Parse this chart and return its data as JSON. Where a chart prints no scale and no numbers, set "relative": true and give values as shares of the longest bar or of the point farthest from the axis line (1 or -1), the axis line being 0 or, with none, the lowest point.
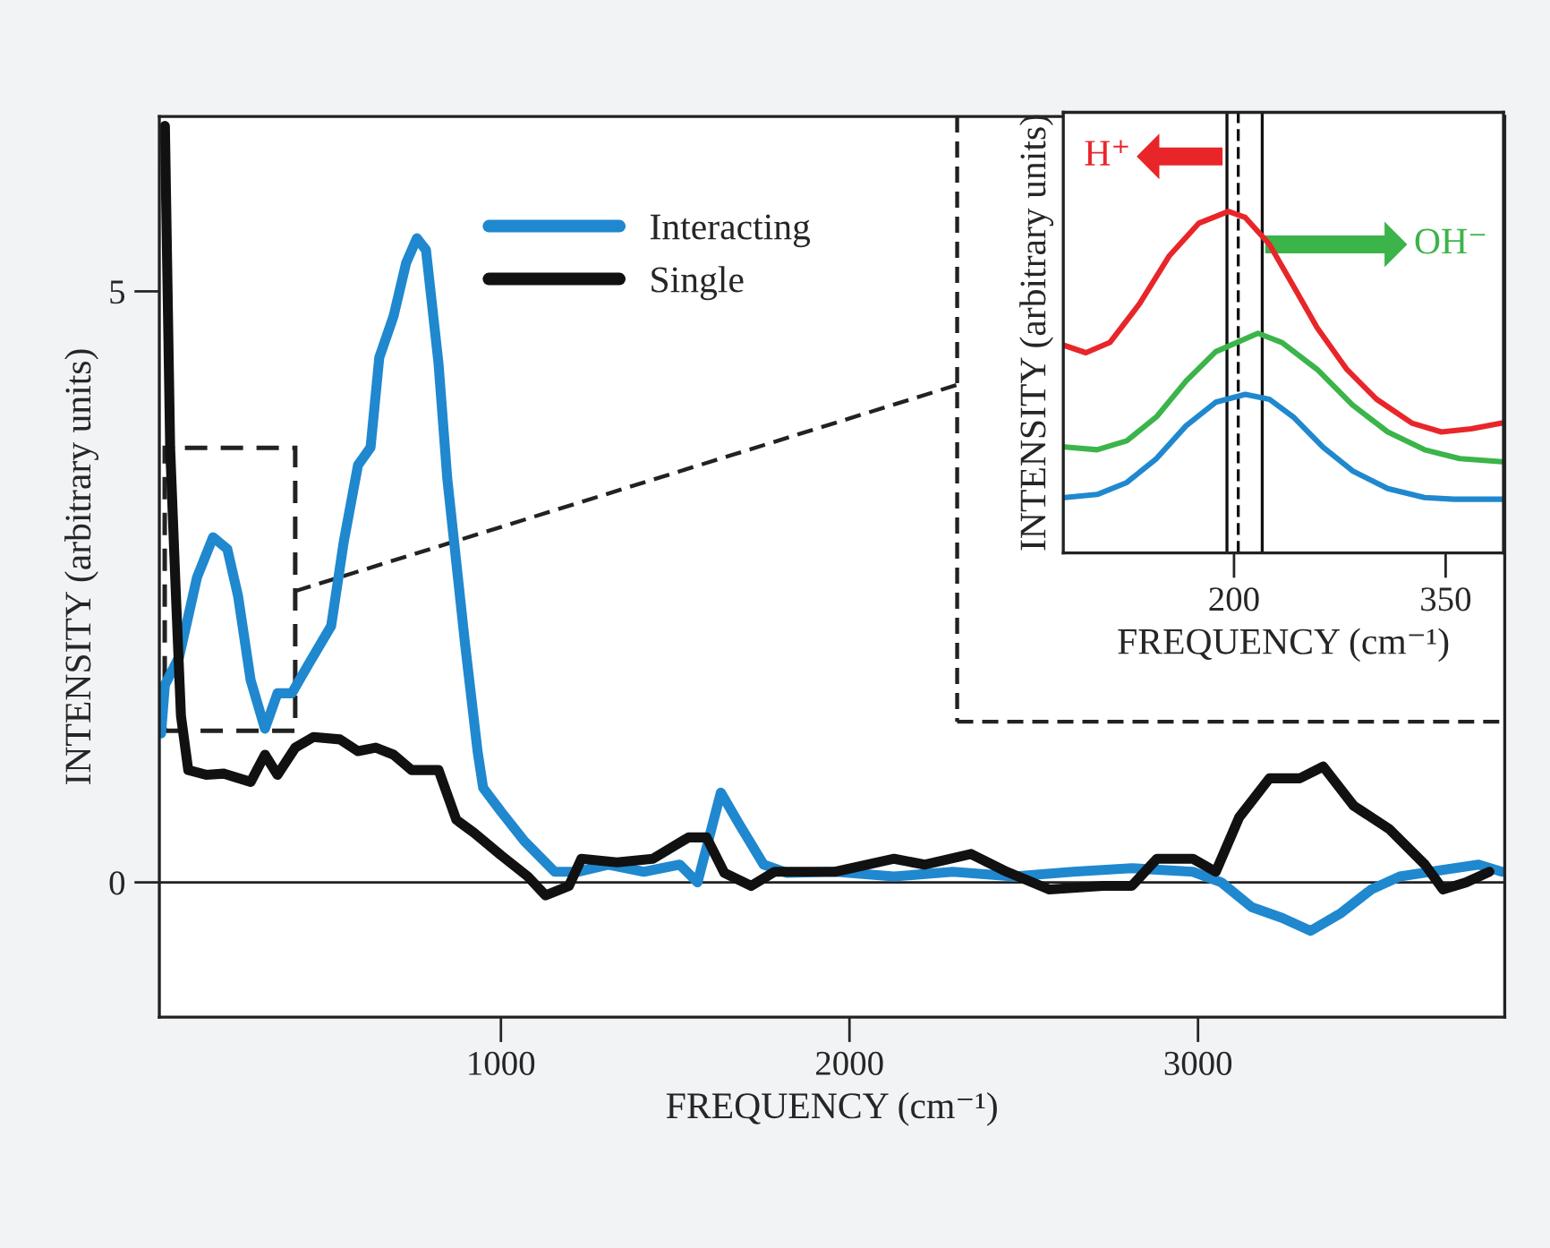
{
  "chart_data": [
    {
      "type": "line",
      "xlabel": "FREQUENCY (cm⁻¹)",
      "ylabel": "INTENSITY (arbitrary units)",
      "xlim": [
        20,
        3880
      ],
      "ylim": [
        -1.14,
        6.48
      ],
      "xticks": [
        1000,
        2000,
        3000
      ],
      "yticks": [
        0,
        5
      ],
      "grid": false,
      "legend": "top",
      "marker": "none",
      "line_style": "solid",
      "ref_lines": [
        {
          "axis": "y",
          "value": 0,
          "color": "#222222",
          "line_style": "solid"
        }
      ],
      "series": [
        {
          "name": "Interacting",
          "color": "#1f88cf",
          "x": [
            25,
            36,
            77,
            128,
            174,
            215,
            246,
            282,
            323,
            359,
            400,
            451,
            513,
            549,
            590,
            626,
            651,
            692,
            728,
            759,
            785,
            821,
            846,
            897,
            933,
            949,
            1000,
            1067,
            1154,
            1221,
            1308,
            1410,
            1513,
            1564,
            1631,
            1682,
            1754,
            1821,
            1959,
            2128,
            2297,
            2472,
            2641,
            2810,
            2985,
            3067,
            3154,
            3241,
            3323,
            3410,
            3497,
            3579,
            3667,
            3805,
            3872
          ],
          "values": [
            1.26,
            1.67,
            1.91,
            2.58,
            2.92,
            2.82,
            2.42,
            1.71,
            1.3,
            1.6,
            1.6,
            1.86,
            2.17,
            2.88,
            3.53,
            3.68,
            4.44,
            4.79,
            5.24,
            5.45,
            5.35,
            4.39,
            3.42,
            2.02,
            1.11,
            0.8,
            0.6,
            0.35,
            0.09,
            0.09,
            0.15,
            0.09,
            0.15,
            0.0,
            0.76,
            0.5,
            0.15,
            0.08,
            0.09,
            0.05,
            0.09,
            0.05,
            0.09,
            0.12,
            0.09,
            0.0,
            -0.21,
            -0.3,
            -0.41,
            -0.26,
            -0.06,
            0.05,
            0.09,
            0.15,
            0.09
          ]
        },
        {
          "name": "Single",
          "color": "#111111",
          "x": [
            36,
            51,
            67,
            82,
            103,
            154,
            205,
            282,
            323,
            359,
            410,
            462,
            538,
            590,
            641,
            692,
            744,
            821,
            872,
            923,
            1000,
            1077,
            1128,
            1195,
            1231,
            1333,
            1436,
            1538,
            1590,
            1641,
            1718,
            1785,
            1959,
            2128,
            2215,
            2349,
            2451,
            2574,
            2728,
            2810,
            2882,
            2985,
            3051,
            3118,
            3205,
            3292,
            3359,
            3446,
            3549,
            3651,
            3703,
            3769,
            3836
          ],
          "values": [
            6.4,
            3.68,
            2.47,
            1.41,
            0.95,
            0.91,
            0.92,
            0.85,
            1.08,
            0.91,
            1.14,
            1.23,
            1.21,
            1.11,
            1.14,
            1.08,
            0.95,
            0.95,
            0.53,
            0.42,
            0.23,
            0.05,
            -0.11,
            -0.03,
            0.2,
            0.17,
            0.2,
            0.38,
            0.38,
            0.08,
            -0.03,
            0.09,
            0.09,
            0.2,
            0.15,
            0.24,
            0.09,
            -0.06,
            -0.03,
            -0.03,
            0.2,
            0.2,
            0.09,
            0.55,
            0.88,
            0.88,
            0.98,
            0.65,
            0.45,
            0.15,
            -0.06,
            0.0,
            0.09
          ]
        }
      ]
    },
    {
      "type": "line",
      "relative": true,
      "xlabel": "FREQUENCY (cm⁻¹)",
      "ylabel": "INTENSITY (arbitrary units)",
      "xlim": [
        79,
        391
      ],
      "xticks": [
        200,
        350
      ],
      "tick_labels": "x",
      "grid": false,
      "marker": "none",
      "line_style": "solid",
      "ref_lines": [
        {
          "axis": "x",
          "value": 195,
          "color": "#111111",
          "line_style": "solid"
        },
        {
          "axis": "x",
          "value": 203,
          "color": "#111111",
          "line_style": "dashed"
        },
        {
          "axis": "x",
          "value": 220,
          "color": "#111111",
          "line_style": "solid"
        }
      ],
      "annotations": [
        "H⁺",
        "OH⁻"
      ],
      "series": [
        {
          "color": "#e8262a",
          "x": [
            80,
            95,
            112,
            133,
            154,
            175,
            196,
            208,
            225,
            242,
            259,
            280,
            301,
            326,
            347,
            368,
            390
          ],
          "values": [
            0.607,
            0.586,
            0.616,
            0.729,
            0.869,
            0.965,
            1.0,
            0.982,
            0.904,
            0.782,
            0.659,
            0.537,
            0.45,
            0.38,
            0.354,
            0.363,
            0.38
          ]
        },
        {
          "color": "#3bb44a",
          "x": [
            80,
            103,
            124,
            145,
            166,
            187,
            217,
            234,
            259,
            284,
            309,
            335,
            360,
            390
          ],
          "values": [
            0.31,
            0.302,
            0.328,
            0.398,
            0.503,
            0.589,
            0.643,
            0.616,
            0.537,
            0.433,
            0.354,
            0.302,
            0.276,
            0.267
          ]
        },
        {
          "color": "#1f88cf",
          "x": [
            80,
            103,
            124,
            145,
            166,
            187,
            208,
            225,
            242,
            263,
            284,
            309,
            335,
            356,
            390
          ],
          "values": [
            0.162,
            0.171,
            0.206,
            0.276,
            0.372,
            0.441,
            0.464,
            0.45,
            0.398,
            0.31,
            0.24,
            0.188,
            0.162,
            0.157,
            0.157
          ]
        }
      ]
    }
  ]
}
